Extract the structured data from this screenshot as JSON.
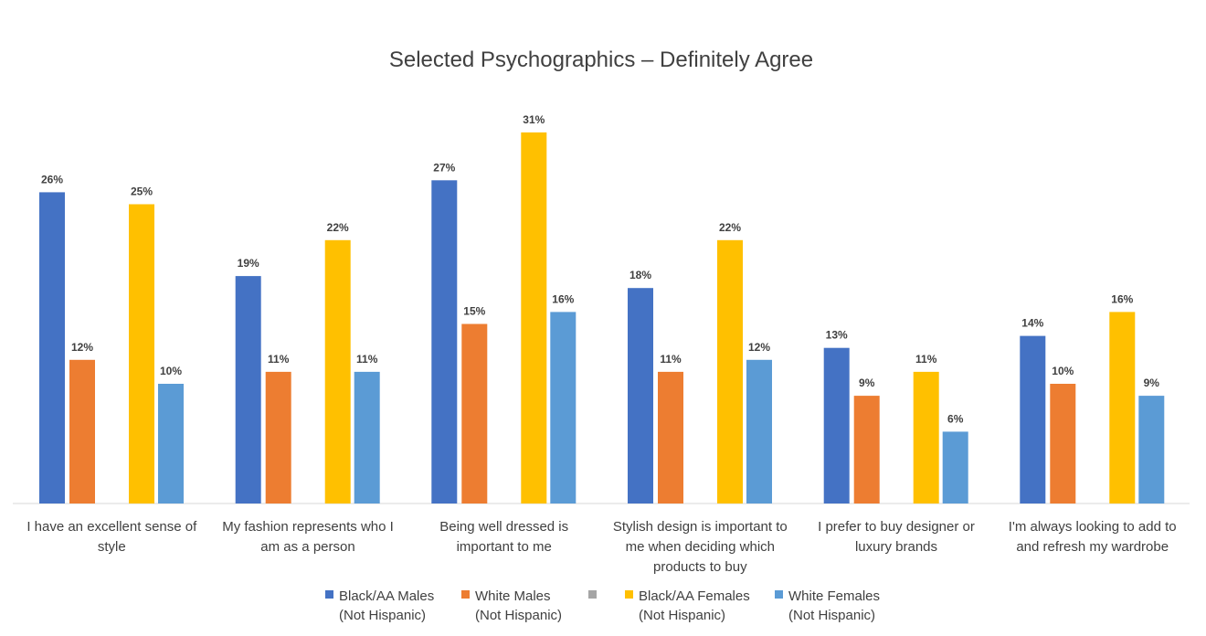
{
  "chart_data": {
    "type": "bar",
    "title": "Selected Psychographics – Definitely Agree",
    "categories": [
      [
        "I have an excellent sense of",
        "style"
      ],
      [
        "My fashion represents who I",
        "am as a person"
      ],
      [
        "Being well dressed is",
        "important to me"
      ],
      [
        "Stylish design is important to",
        "me when deciding which",
        "products to buy"
      ],
      [
        "I prefer to buy designer or",
        "luxury brands"
      ],
      [
        "I'm always looking to add to",
        "and refresh my wardrobe"
      ]
    ],
    "series": [
      {
        "name": [
          "Black/AA Males",
          "(Not Hispanic)"
        ],
        "color": "#4472C4",
        "values": [
          26,
          19,
          27,
          18,
          13,
          14
        ]
      },
      {
        "name": [
          "White Males",
          "(Not Hispanic)"
        ],
        "color": "#ED7D31",
        "values": [
          12,
          11,
          15,
          11,
          9,
          10
        ]
      },
      {
        "name": [],
        "color": "#A5A5A5",
        "values": [
          null,
          null,
          null,
          null,
          null,
          null
        ]
      },
      {
        "name": [
          "Black/AA Females",
          "(Not Hispanic)"
        ],
        "color": "#FFC000",
        "values": [
          25,
          22,
          31,
          22,
          11,
          16
        ]
      },
      {
        "name": [
          "White Females",
          "(Not Hispanic)"
        ],
        "color": "#5B9BD5",
        "values": [
          10,
          11,
          16,
          12,
          6,
          9
        ]
      }
    ],
    "value_suffix": "%",
    "ylim": [
      0,
      35
    ],
    "grid": false,
    "legend_position": "bottom"
  }
}
